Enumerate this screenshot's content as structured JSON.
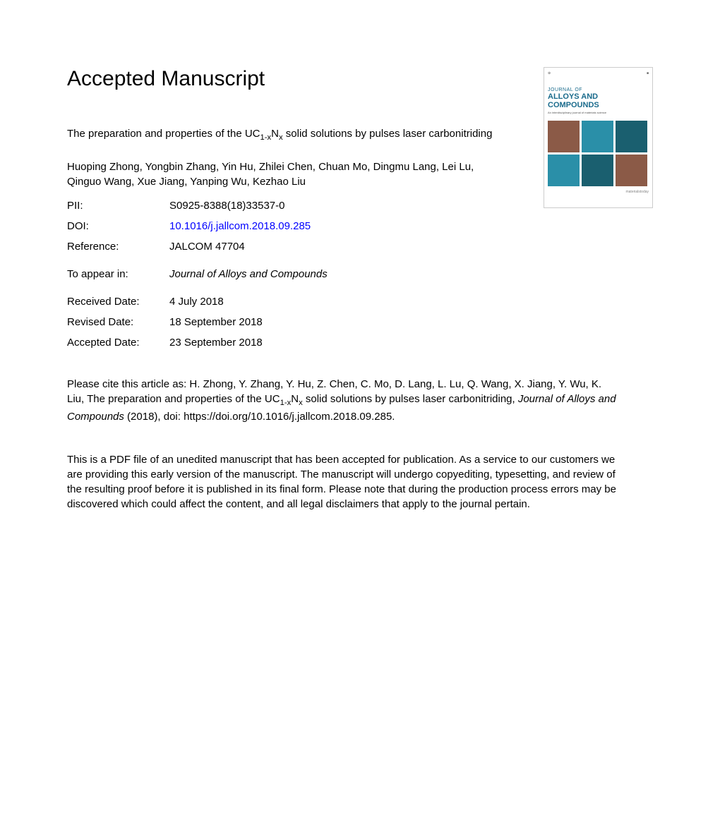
{
  "heading": "Accepted Manuscript",
  "title_prefix": "The preparation and properties of the UC",
  "title_sub1": "1-x",
  "title_mid": "N",
  "title_sub2": "x",
  "title_suffix": " solid solutions by pulses laser carbonitriding",
  "authors": "Huoping Zhong, Yongbin Zhang, Yin Hu, Zhilei Chen, Chuan Mo, Dingmu Lang, Lei Lu, Qinguo Wang, Xue Jiang, Yanping Wu, Kezhao Liu",
  "meta": {
    "pii_label": "PII:",
    "pii_value": "S0925-8388(18)33537-0",
    "doi_label": "DOI:",
    "doi_value": "10.1016/j.jallcom.2018.09.285",
    "reference_label": "Reference:",
    "reference_value": "JALCOM 47704",
    "appear_label": "To appear in:",
    "appear_value": "Journal of Alloys and Compounds",
    "received_label": "Received Date:",
    "received_value": "4 July 2018",
    "revised_label": "Revised Date:",
    "revised_value": "18 September 2018",
    "accepted_label": "Accepted Date:",
    "accepted_value": "23 September 2018"
  },
  "citation_prefix": "Please cite this article as: H. Zhong, Y. Zhang, Y. Hu, Z. Chen, C. Mo, D. Lang, L. Lu, Q. Wang, X. Jiang, Y. Wu, K. Liu, The preparation and properties of the UC",
  "citation_sub1": "1-x",
  "citation_mid": "N",
  "citation_sub2": "x",
  "citation_middle": " solid solutions by pulses laser carbonitriding, ",
  "citation_journal": "Journal of Alloys and Compounds",
  "citation_suffix": " (2018), doi: https://doi.org/10.1016/j.jallcom.2018.09.285.",
  "disclaimer": "This is a PDF file of an unedited manuscript that has been accepted for publication. As a service to our customers we are providing this early version of the manuscript. The manuscript will undergo copyediting, typesetting, and review of the resulting proof before it is published in its final form. Please note that during the production process errors may be discovered which could affect the content, and all legal disclaimers that apply to the journal pertain.",
  "cover": {
    "journal_of": "JOURNAL OF",
    "name": "ALLOYS AND COMPOUNDS",
    "footer": "materialstoday",
    "colors": {
      "teal": "#2a8fa8",
      "dark_teal": "#1a5f6f",
      "brown": "#8b5a47"
    }
  }
}
